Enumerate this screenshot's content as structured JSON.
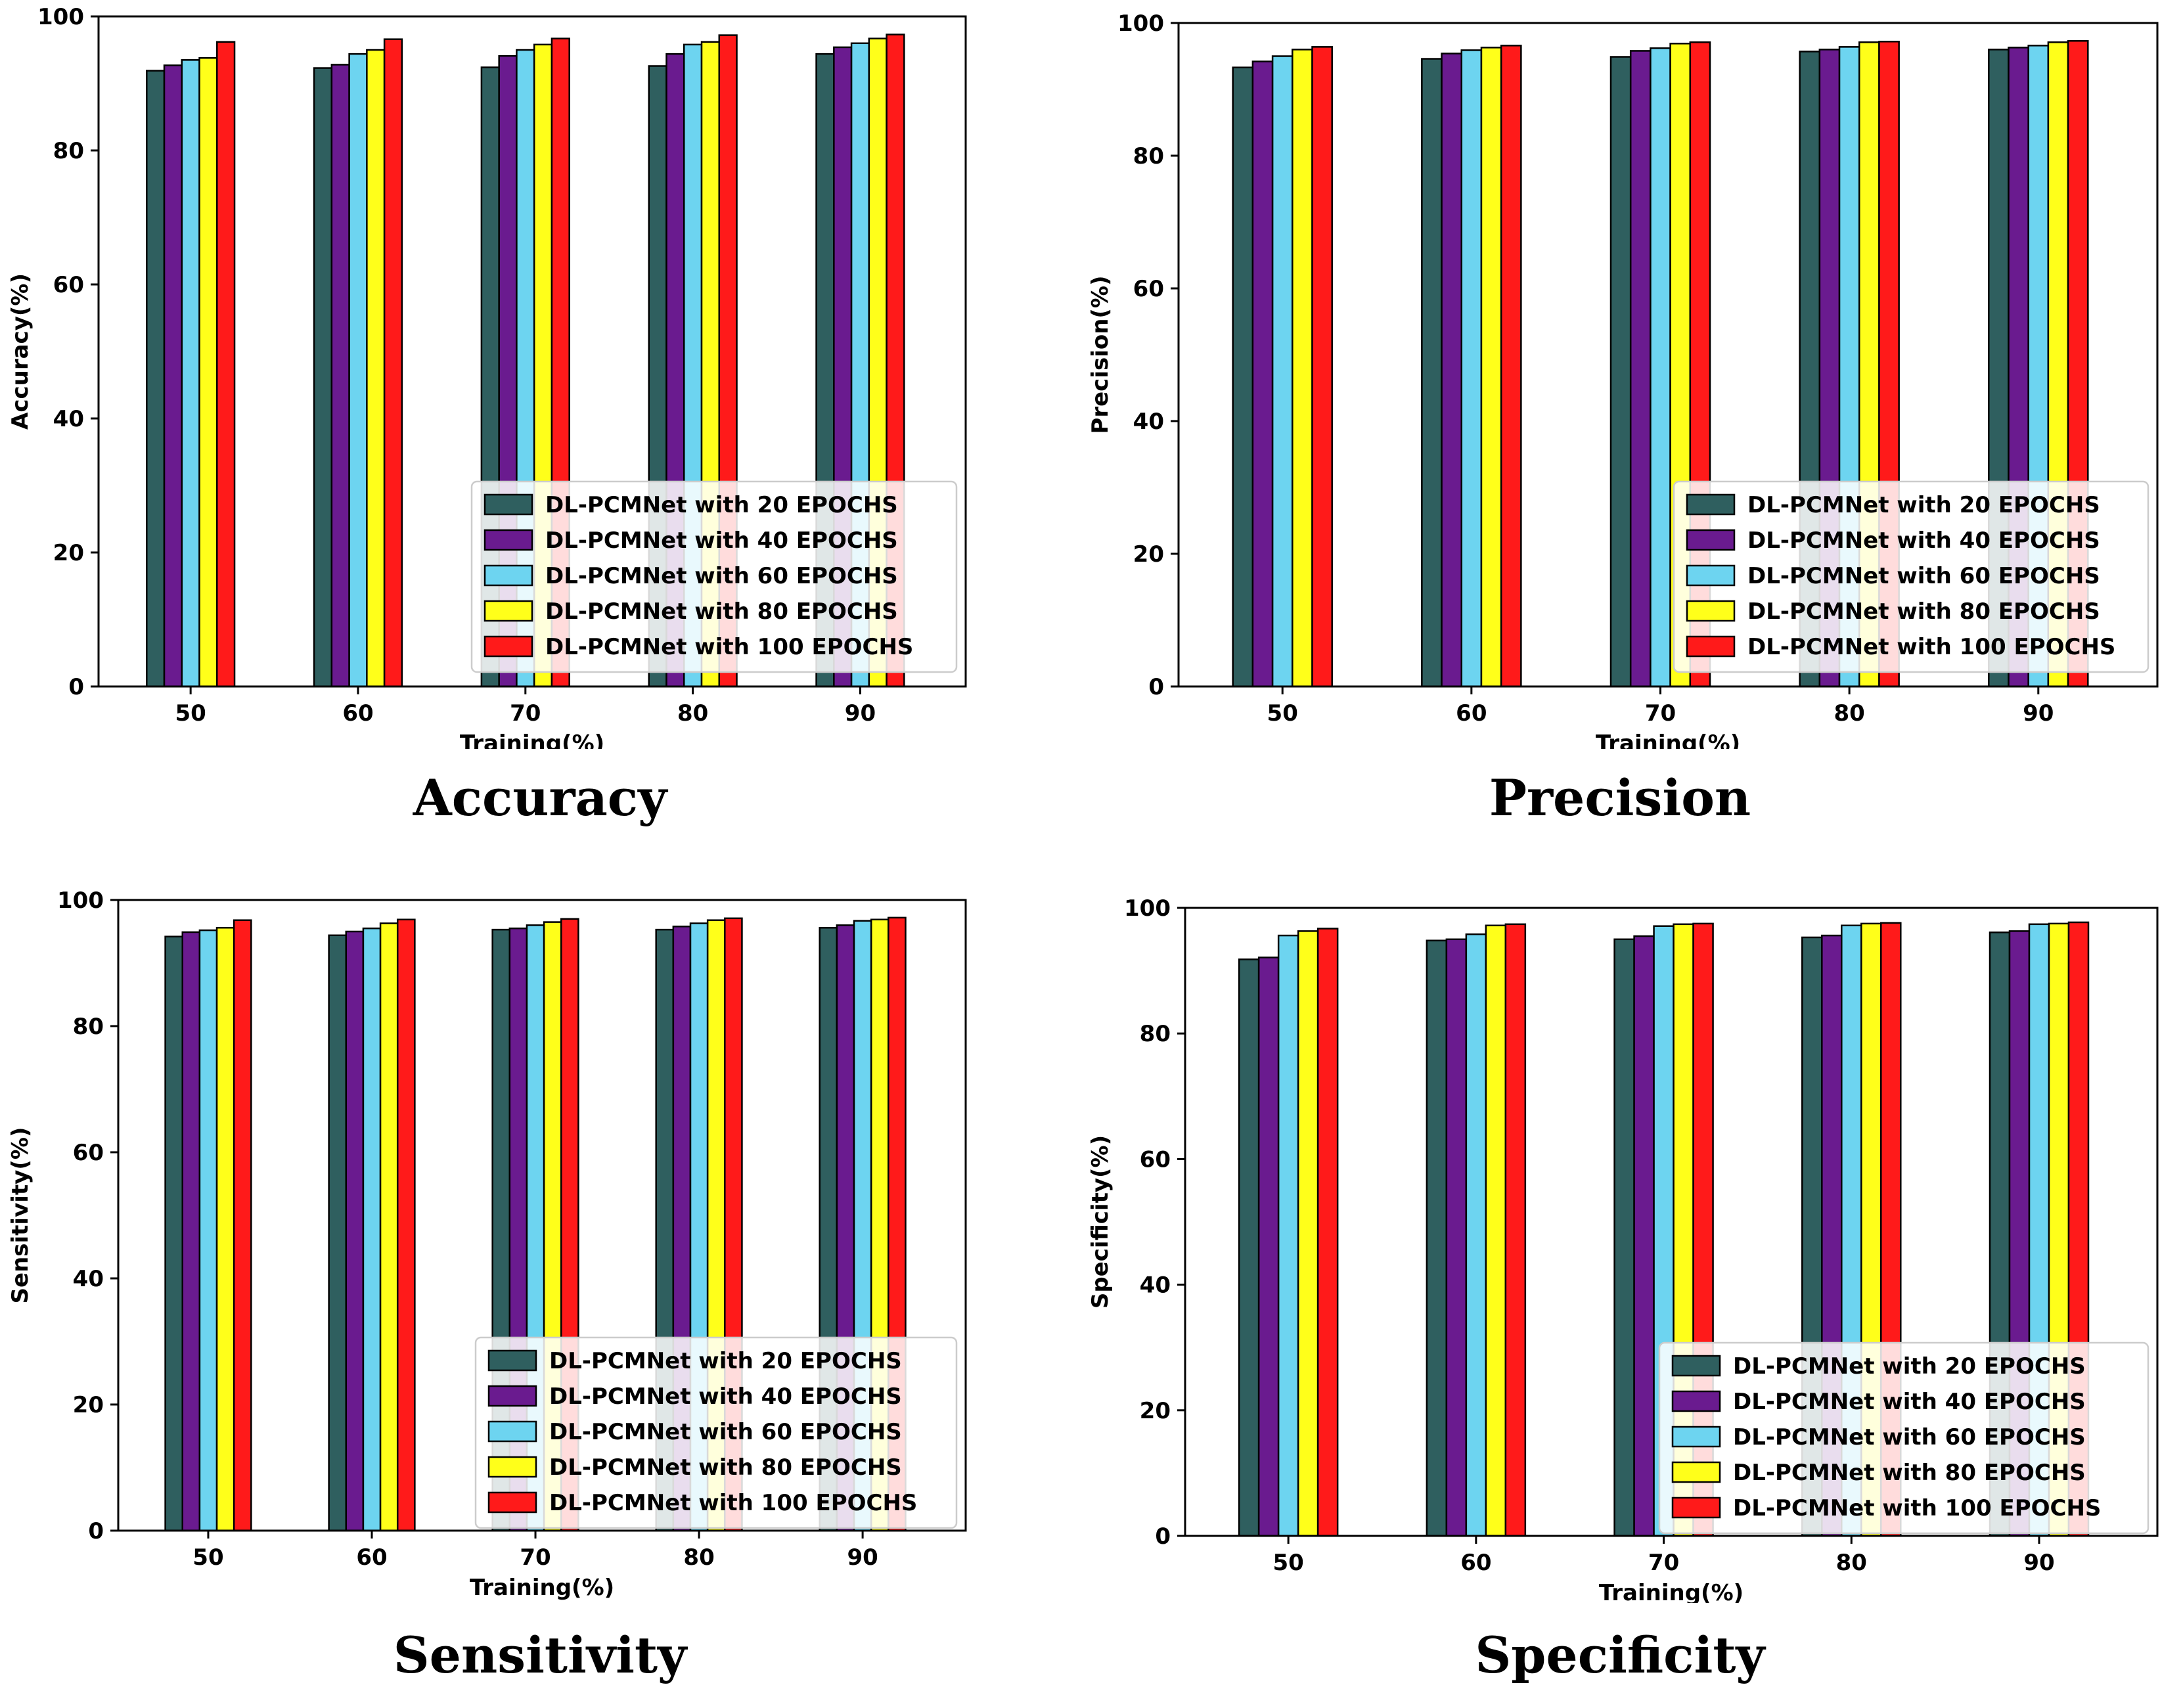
{
  "legend_colors": [
    "#2f5f5f",
    "#6a1b8f",
    "#6dd4f0",
    "#ffff1a",
    "#ff1a1a"
  ],
  "chart_data": [
    {
      "type": "bar",
      "caption": "Accuracy",
      "xlabel": "Training(%)",
      "ylabel": "Accuracy(%)",
      "categories": [
        "50",
        "60",
        "70",
        "80",
        "90"
      ],
      "ylim": [
        0,
        100
      ],
      "yticks": [
        "0",
        "20",
        "40",
        "60",
        "80",
        "100"
      ],
      "legend_position": "lower-right",
      "series": [
        {
          "name": "DL-PCMNet with 20 EPOCHS",
          "values": [
            91.9,
            92.3,
            92.4,
            92.6,
            94.4
          ]
        },
        {
          "name": "DL-PCMNet with 40 EPOCHS",
          "values": [
            92.7,
            92.8,
            94.1,
            94.4,
            95.4
          ]
        },
        {
          "name": "DL-PCMNet with 60 EPOCHS",
          "values": [
            93.5,
            94.4,
            95.0,
            95.8,
            96.0
          ]
        },
        {
          "name": "DL-PCMNet with 80 EPOCHS",
          "values": [
            93.8,
            95.0,
            95.8,
            96.2,
            96.7
          ]
        },
        {
          "name": "DL-PCMNet with 100 EPOCHS",
          "values": [
            96.2,
            96.6,
            96.7,
            97.2,
            97.3
          ]
        }
      ]
    },
    {
      "type": "bar",
      "caption": "Precision",
      "xlabel": "Training(%)",
      "ylabel": "Precision(%)",
      "categories": [
        "50",
        "60",
        "70",
        "80",
        "90"
      ],
      "ylim": [
        0,
        100
      ],
      "yticks": [
        "0",
        "20",
        "40",
        "60",
        "80",
        "100"
      ],
      "legend_position": "lower-right",
      "series": [
        {
          "name": "DL-PCMNet with 20 EPOCHS",
          "values": [
            93.3,
            94.6,
            94.9,
            95.7,
            96.0
          ]
        },
        {
          "name": "DL-PCMNet with 40 EPOCHS",
          "values": [
            94.2,
            95.4,
            95.8,
            96.0,
            96.3
          ]
        },
        {
          "name": "DL-PCMNet with 60 EPOCHS",
          "values": [
            95.0,
            95.9,
            96.2,
            96.4,
            96.6
          ]
        },
        {
          "name": "DL-PCMNet with 80 EPOCHS",
          "values": [
            96.0,
            96.3,
            96.9,
            97.1,
            97.1
          ]
        },
        {
          "name": "DL-PCMNet with 100 EPOCHS",
          "values": [
            96.4,
            96.6,
            97.1,
            97.2,
            97.3
          ]
        }
      ]
    },
    {
      "type": "bar",
      "caption": "Sensitivity",
      "xlabel": "Training(%)",
      "ylabel": "Sensitivity(%)",
      "categories": [
        "50",
        "60",
        "70",
        "80",
        "90"
      ],
      "ylim": [
        0,
        100
      ],
      "yticks": [
        "0",
        "20",
        "40",
        "60",
        "80",
        "100"
      ],
      "legend_position": "lower-right",
      "series": [
        {
          "name": "DL-PCMNet with 20 EPOCHS",
          "values": [
            94.2,
            94.4,
            95.3,
            95.3,
            95.6
          ]
        },
        {
          "name": "DL-PCMNet with 40 EPOCHS",
          "values": [
            94.9,
            95.0,
            95.5,
            95.8,
            96.0
          ]
        },
        {
          "name": "DL-PCMNet with 60 EPOCHS",
          "values": [
            95.2,
            95.5,
            96.0,
            96.3,
            96.7
          ]
        },
        {
          "name": "DL-PCMNet with 80 EPOCHS",
          "values": [
            95.6,
            96.3,
            96.5,
            96.8,
            96.9
          ]
        },
        {
          "name": "DL-PCMNet with 100 EPOCHS",
          "values": [
            96.8,
            96.9,
            97.0,
            97.1,
            97.2
          ]
        }
      ]
    },
    {
      "type": "bar",
      "caption": "Specificity",
      "xlabel": "Training(%)",
      "ylabel": "Specificity(%)",
      "categories": [
        "50",
        "60",
        "70",
        "80",
        "90"
      ],
      "ylim": [
        0,
        100
      ],
      "yticks": [
        "0",
        "20",
        "40",
        "60",
        "80",
        "100"
      ],
      "legend_position": "lower-right",
      "series": [
        {
          "name": "DL-PCMNet with 20 EPOCHS",
          "values": [
            91.8,
            94.8,
            95.0,
            95.3,
            96.1
          ]
        },
        {
          "name": "DL-PCMNet with 40 EPOCHS",
          "values": [
            92.1,
            95.0,
            95.5,
            95.6,
            96.3
          ]
        },
        {
          "name": "DL-PCMNet with 60 EPOCHS",
          "values": [
            95.6,
            95.8,
            97.1,
            97.2,
            97.4
          ]
        },
        {
          "name": "DL-PCMNet with 80 EPOCHS",
          "values": [
            96.3,
            97.2,
            97.4,
            97.5,
            97.5
          ]
        },
        {
          "name": "DL-PCMNet with 100 EPOCHS",
          "values": [
            96.7,
            97.4,
            97.5,
            97.6,
            97.7
          ]
        }
      ]
    }
  ]
}
